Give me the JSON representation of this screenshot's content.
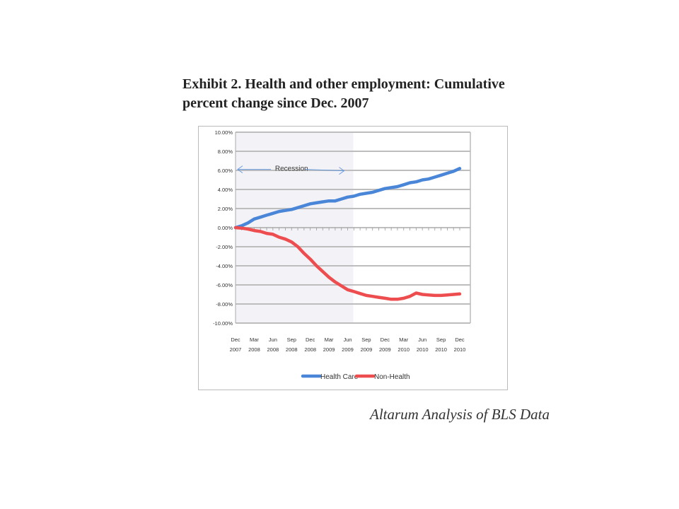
{
  "title": "Exhibit 2. Health and other employment: Cumulative percent change since Dec. 2007",
  "caption": "Altarum Analysis of BLS Data",
  "chart_data": {
    "type": "line",
    "title": "Exhibit 2. Health and other employment: Cumulative percent change since Dec. 2007",
    "xlabel": "",
    "ylabel": "",
    "ylim": [
      -10,
      10
    ],
    "y_ticks": [
      "10.00%",
      "8.00%",
      "6.00%",
      "4.00%",
      "2.00%",
      "0.00%",
      "-2.00%",
      "-4.00%",
      "-6.00%",
      "-8.00%",
      "-10.00%"
    ],
    "y_tick_values": [
      10,
      8,
      6,
      4,
      2,
      0,
      -2,
      -4,
      -6,
      -8,
      -10
    ],
    "x_ticks": [
      [
        "Dec",
        "2007"
      ],
      [
        "Mar",
        "2008"
      ],
      [
        "Jun",
        "2008"
      ],
      [
        "Sep",
        "2008"
      ],
      [
        "Dec",
        "2008"
      ],
      [
        "Mar",
        "2009"
      ],
      [
        "Jun",
        "2009"
      ],
      [
        "Sep",
        "2009"
      ],
      [
        "Dec",
        "2009"
      ],
      [
        "Mar",
        "2010"
      ],
      [
        "Jun",
        "2010"
      ],
      [
        "Sep",
        "2010"
      ],
      [
        "Dec",
        "2010"
      ]
    ],
    "x_note": "monthly points, Dec 2007 through Dec 2010",
    "grid": true,
    "legend": "bottom",
    "annotation": {
      "text": "Recession",
      "from_month": 0,
      "to_month": 18
    },
    "series": [
      {
        "name": "Health Care",
        "color": "#4a86d8",
        "values": [
          0,
          0.2,
          0.5,
          0.9,
          1.1,
          1.3,
          1.5,
          1.7,
          1.8,
          1.9,
          2.1,
          2.3,
          2.5,
          2.6,
          2.7,
          2.8,
          2.8,
          3.0,
          3.2,
          3.3,
          3.5,
          3.6,
          3.7,
          3.9,
          4.1,
          4.2,
          4.3,
          4.5,
          4.7,
          4.8,
          5.0,
          5.1,
          5.3,
          5.5,
          5.7,
          5.9,
          6.2
        ]
      },
      {
        "name": "Non-Health",
        "color": "#ee4d4f",
        "values": [
          0,
          -0.05,
          -0.15,
          -0.3,
          -0.4,
          -0.6,
          -0.7,
          -1.0,
          -1.2,
          -1.5,
          -2.0,
          -2.7,
          -3.3,
          -4.0,
          -4.6,
          -5.2,
          -5.7,
          -6.1,
          -6.5,
          -6.7,
          -6.9,
          -7.1,
          -7.2,
          -7.3,
          -7.4,
          -7.5,
          -7.5,
          -7.4,
          -7.2,
          -6.85,
          -7.0,
          -7.05,
          -7.1,
          -7.1,
          -7.05,
          -7.0,
          -6.95
        ]
      }
    ]
  }
}
